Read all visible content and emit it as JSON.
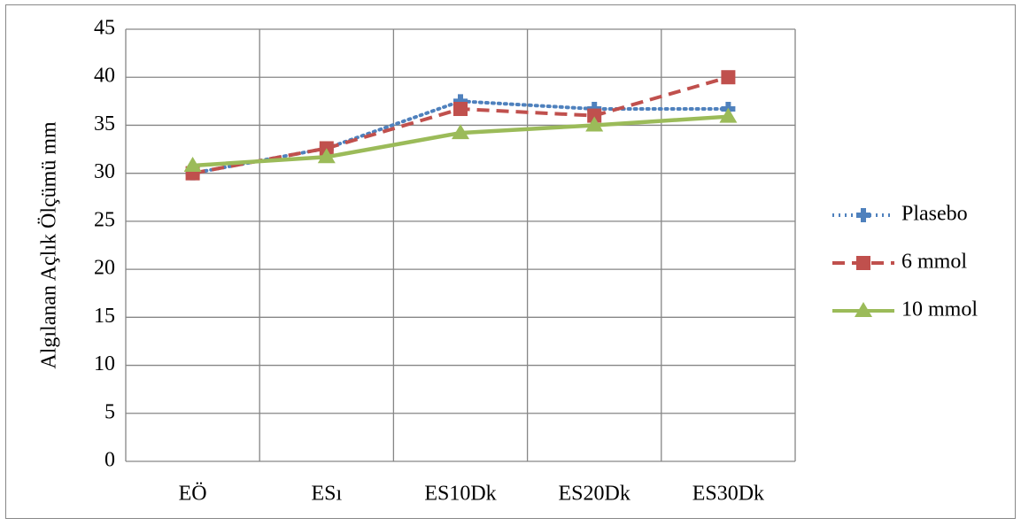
{
  "chart_data": {
    "type": "line",
    "y_label": "Algılanan Açlık Ölçümü mm",
    "categories": [
      "EÖ",
      "ESı",
      "ES10Dk",
      "ES20Dk",
      "ES30Dk"
    ],
    "series": [
      {
        "name": "Plasebo",
        "color": "#4f81bd",
        "dash": "dotted",
        "marker": "plus",
        "values": [
          30,
          32.6,
          37.5,
          36.7,
          36.7
        ]
      },
      {
        "name": "6 mmol",
        "color": "#c0504d",
        "dash": "dashed",
        "marker": "square",
        "values": [
          30,
          32.6,
          36.7,
          36,
          40
        ]
      },
      {
        "name": "10 mmol",
        "color": "#9bbb59",
        "dash": "solid",
        "marker": "triangle",
        "values": [
          30.8,
          31.7,
          34.2,
          35,
          35.9
        ]
      }
    ],
    "ylim": [
      0,
      45
    ],
    "yticks": [
      0,
      5,
      10,
      15,
      20,
      25,
      30,
      35,
      40,
      45
    ],
    "grid": true,
    "legend": "right"
  }
}
